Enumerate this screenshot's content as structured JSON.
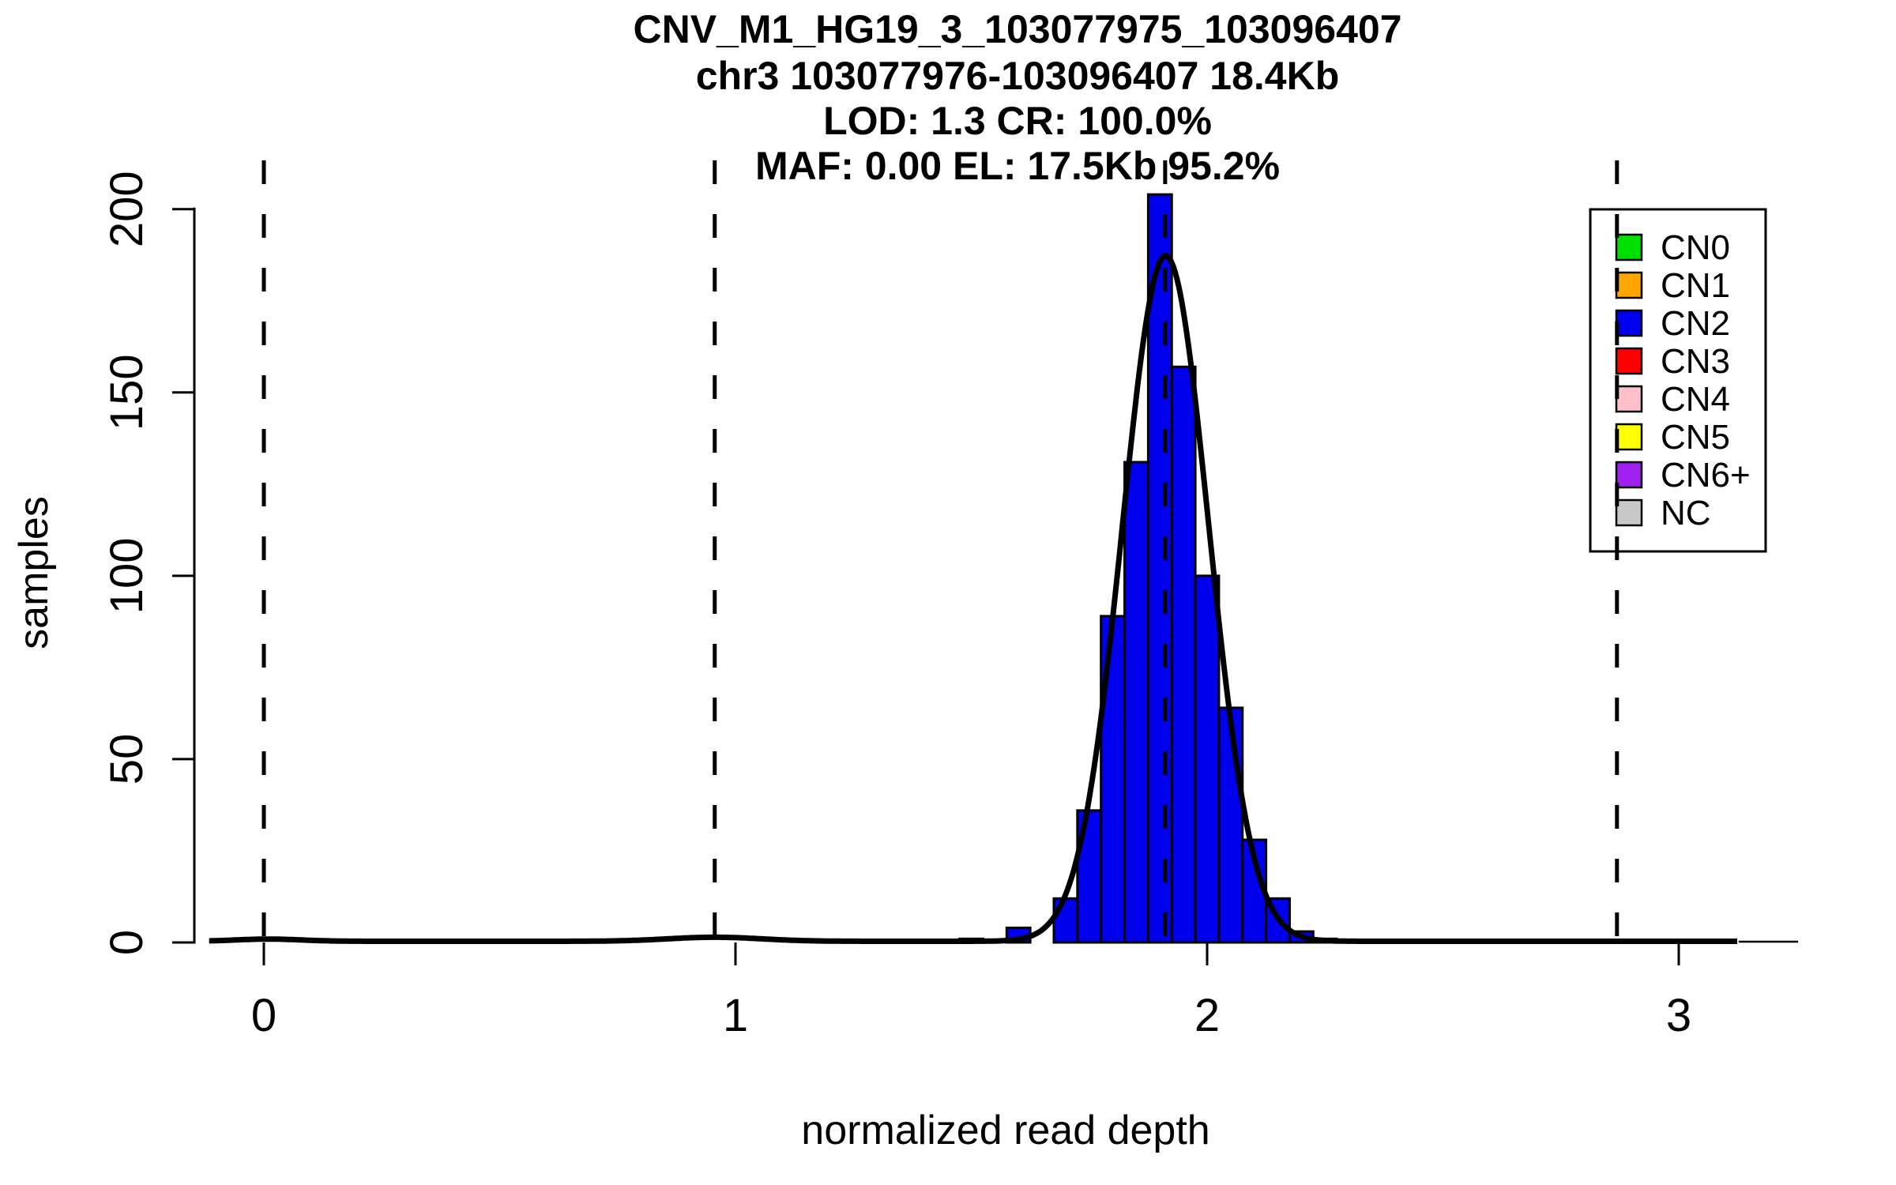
{
  "chart_data": {
    "type": "bar",
    "subtype": "histogram-with-density",
    "title_lines": [
      "CNV_M1_HG19_3_103077975_103096407",
      "chr3 103077976-103096407 18.4Kb",
      "LOD: 1.3 CR: 100.0%",
      "MAF: 0.00 EL: 17.5Kb 95.2%"
    ],
    "xlabel": "normalized read depth",
    "ylabel": "samples",
    "xlim": [
      -0.12,
      3.25
    ],
    "ylim": [
      0,
      205
    ],
    "grid": false,
    "x_ticks": [
      {
        "v": 0,
        "label": "0"
      },
      {
        "v": 1,
        "label": "1"
      },
      {
        "v": 2,
        "label": "2"
      },
      {
        "v": 3,
        "label": "3"
      }
    ],
    "y_ticks": [
      {
        "v": 0,
        "label": "0"
      },
      {
        "v": 50,
        "label": "50"
      },
      {
        "v": 100,
        "label": "100"
      },
      {
        "v": 150,
        "label": "150"
      },
      {
        "v": 200,
        "label": "200"
      }
    ],
    "bar_color": "#0000EE",
    "bar_border_color": "#000000",
    "bins": [
      {
        "x0": 1.475,
        "x1": 1.525,
        "count": 1
      },
      {
        "x0": 1.575,
        "x1": 1.625,
        "count": 4
      },
      {
        "x0": 1.675,
        "x1": 1.725,
        "count": 12
      },
      {
        "x0": 1.725,
        "x1": 1.775,
        "count": 36
      },
      {
        "x0": 1.775,
        "x1": 1.825,
        "count": 89
      },
      {
        "x0": 1.825,
        "x1": 1.875,
        "count": 131
      },
      {
        "x0": 1.875,
        "x1": 1.925,
        "count": 204
      },
      {
        "x0": 1.925,
        "x1": 1.975,
        "count": 157
      },
      {
        "x0": 1.975,
        "x1": 2.025,
        "count": 100
      },
      {
        "x0": 2.025,
        "x1": 2.075,
        "count": 64
      },
      {
        "x0": 2.075,
        "x1": 2.125,
        "count": 28
      },
      {
        "x0": 2.125,
        "x1": 2.175,
        "count": 12
      },
      {
        "x0": 2.175,
        "x1": 2.225,
        "count": 3
      },
      {
        "x0": 2.225,
        "x1": 2.275,
        "count": 1
      }
    ],
    "density_curve": {
      "color": "#000000",
      "range": [
        -0.116,
        3.127
      ],
      "components": [
        {
          "mu": 1.912,
          "sigma": 0.0915,
          "amp": 187
        },
        {
          "mu": 0.956,
          "sigma": 0.1,
          "amp": 1.1
        },
        {
          "mu": 0.01,
          "sigma": 0.07,
          "amp": 0.6
        }
      ]
    },
    "cluster_mean_lines": {
      "style": "dashed",
      "color": "#000000",
      "positions": [
        0.0,
        0.956,
        1.911,
        2.869
      ]
    },
    "legend": {
      "position": "top-right",
      "items": [
        {
          "label": "CN0",
          "color": "#00E000"
        },
        {
          "label": "CN1",
          "color": "#FFA500"
        },
        {
          "label": "CN2",
          "color": "#0000EE"
        },
        {
          "label": "CN3",
          "color": "#FF0000"
        },
        {
          "label": "CN4",
          "color": "#FFC0CB"
        },
        {
          "label": "CN5",
          "color": "#FFFF00"
        },
        {
          "label": "CN6+",
          "color": "#A020F0"
        },
        {
          "label": "NC",
          "color": "#C8C8C8"
        }
      ]
    }
  }
}
